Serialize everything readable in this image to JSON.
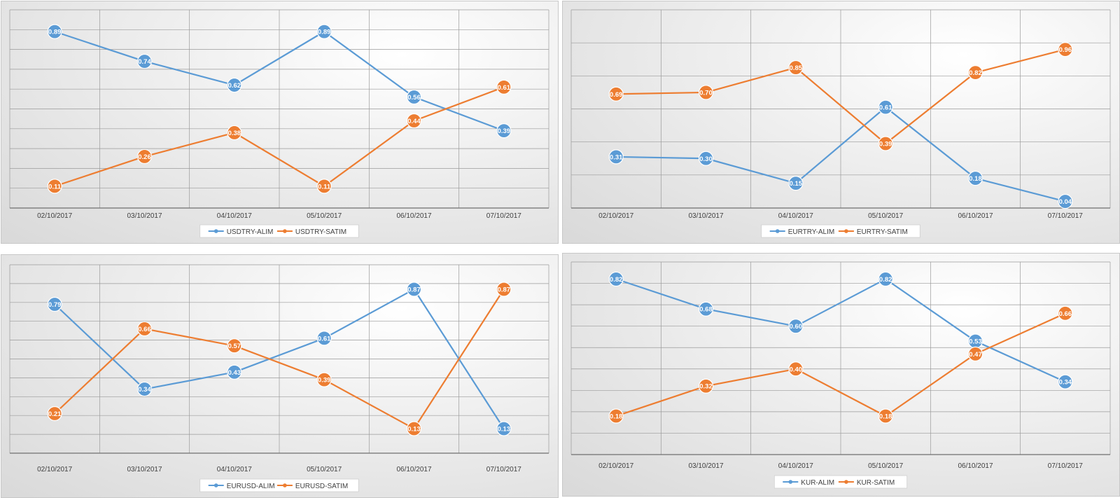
{
  "chart_data": [
    {
      "type": "line",
      "categories": [
        "02/10/2017",
        "03/10/2017",
        "04/10/2017",
        "05/10/2017",
        "06/10/2017",
        "07/10/2017"
      ],
      "series": [
        {
          "name": "USDTRY-ALIM",
          "color": "#5b9bd5",
          "values": [
            0.89,
            0.74,
            0.62,
            0.89,
            0.56,
            0.39
          ],
          "labels": [
            "0.89",
            "0.74",
            "0.62",
            "0.89",
            "0.56",
            "0.39"
          ]
        },
        {
          "name": "USDTRY-SATIM",
          "color": "#ed7d31",
          "values": [
            0.11,
            0.26,
            0.38,
            0.11,
            0.44,
            0.61
          ],
          "labels": [
            "0.11",
            "0.26",
            "0.38",
            "0.11",
            "0.44",
            "0.61"
          ]
        }
      ],
      "ylim": [
        0,
        1
      ],
      "grid": true,
      "legend": "bottom"
    },
    {
      "type": "line",
      "categories": [
        "02/10/2017",
        "03/10/2017",
        "04/10/2017",
        "05/10/2017",
        "06/10/2017",
        "07/10/2017"
      ],
      "series": [
        {
          "name": "EURTRY-ALIM",
          "color": "#5b9bd5",
          "values": [
            0.31,
            0.3,
            0.15,
            0.61,
            0.18,
            0.04
          ],
          "labels": [
            "0.31",
            "0.30",
            "0.15",
            "0.61",
            "0.18",
            "0.04"
          ]
        },
        {
          "name": "EURTRY-SATIM",
          "color": "#ed7d31",
          "values": [
            0.69,
            0.7,
            0.85,
            0.39,
            0.82,
            0.96
          ],
          "labels": [
            "0.69",
            "0.70",
            "0.85",
            "0.39",
            "0.82",
            "0.96"
          ]
        }
      ],
      "ylim": [
        0,
        1.2
      ],
      "grid": true,
      "legend": "bottom"
    },
    {
      "type": "line",
      "categories": [
        "02/10/2017",
        "03/10/2017",
        "04/10/2017",
        "05/10/2017",
        "06/10/2017",
        "07/10/2017"
      ],
      "series": [
        {
          "name": "EURUSD-ALIM",
          "color": "#5b9bd5",
          "values": [
            0.79,
            0.34,
            0.43,
            0.61,
            0.87,
            0.13
          ],
          "labels": [
            "0.79",
            "0.34",
            "0.43",
            "0.61",
            "0.87",
            "0.13"
          ]
        },
        {
          "name": "EURUSD-SATIM",
          "color": "#ed7d31",
          "values": [
            0.21,
            0.66,
            0.57,
            0.39,
            0.13,
            0.87
          ],
          "labels": [
            "0.21",
            "0.66",
            "0.57",
            "0.39",
            "0.13",
            "0.87"
          ]
        }
      ],
      "ylim": [
        0,
        1
      ],
      "grid": true,
      "legend": "bottom"
    },
    {
      "type": "line",
      "categories": [
        "02/10/2017",
        "03/10/2017",
        "04/10/2017",
        "05/10/2017",
        "06/10/2017",
        "07/10/2017"
      ],
      "series": [
        {
          "name": "KUR-ALIM",
          "color": "#5b9bd5",
          "values": [
            0.82,
            0.68,
            0.6,
            0.82,
            0.53,
            0.34
          ],
          "labels": [
            "0.82",
            "0.68",
            "0.60",
            "0.82",
            "0.53",
            "0.34"
          ]
        },
        {
          "name": "KUR-SATIM",
          "color": "#ed7d31",
          "values": [
            0.18,
            0.32,
            0.4,
            0.18,
            0.47,
            0.66
          ],
          "labels": [
            "0.18",
            "0.32",
            "0.40",
            "0.18",
            "0.47",
            "0.66"
          ]
        }
      ],
      "ylim": [
        0,
        0.9
      ],
      "grid": true,
      "legend": "bottom"
    }
  ]
}
